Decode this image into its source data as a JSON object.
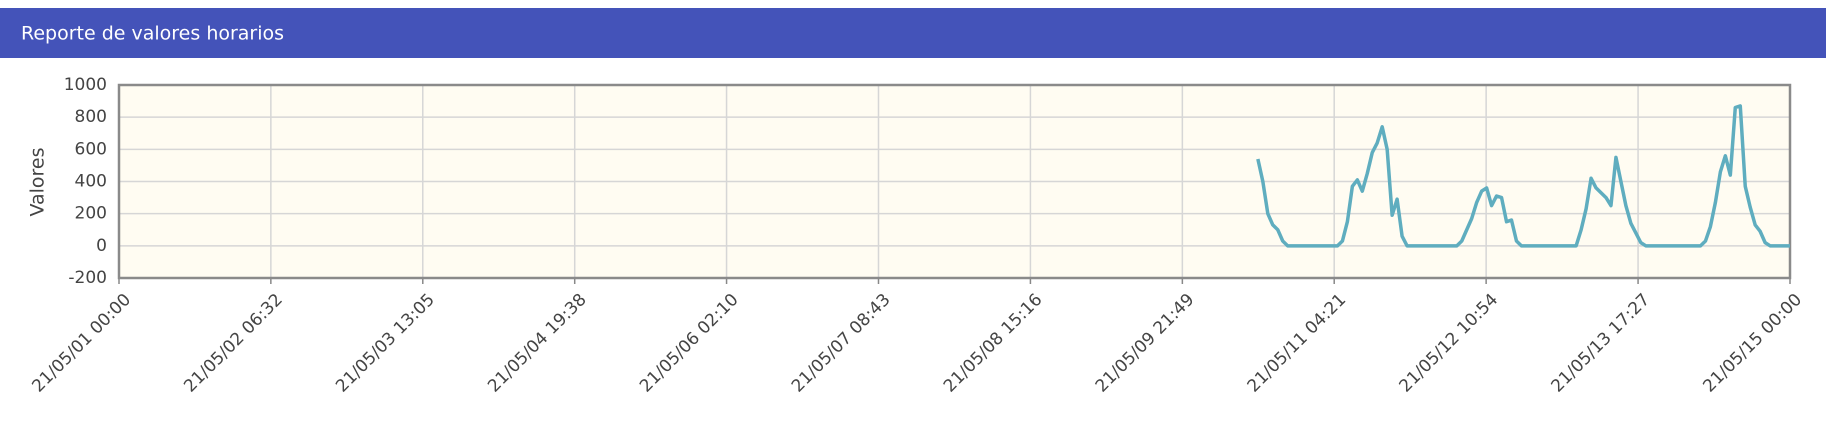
{
  "chart_data": {
    "type": "line",
    "title": "Reporte de valores horarios",
    "ylabel": "Valores",
    "xlim": [
      "21/05/01 00:00",
      "21/05/15 00:00"
    ],
    "xticks": [
      "21/05/01 00:00",
      "21/05/02 06:32",
      "21/05/03 13:05",
      "21/05/04 19:38",
      "21/05/06 02:10",
      "21/05/07 08:43",
      "21/05/08 15:16",
      "21/05/09 21:49",
      "21/05/11 04:21",
      "21/05/12 10:54",
      "21/05/13 17:27",
      "21/05/15 00:00"
    ],
    "ylim": [
      -200,
      1000
    ],
    "yticks": [
      -200,
      0,
      200,
      400,
      600,
      800,
      1000
    ],
    "grid": true,
    "x": [
      "21/05/10 13:00",
      "21/05/10 14:00",
      "21/05/10 15:00",
      "21/05/10 16:00",
      "21/05/10 17:00",
      "21/05/10 18:00",
      "21/05/10 19:00",
      "21/05/10 20:00",
      "21/05/10 21:00",
      "21/05/10 22:00",
      "21/05/10 23:00",
      "21/05/11 00:00",
      "21/05/11 01:00",
      "21/05/11 02:00",
      "21/05/11 03:00",
      "21/05/11 04:00",
      "21/05/11 05:00",
      "21/05/11 06:00",
      "21/05/11 07:00",
      "21/05/11 08:00",
      "21/05/11 09:00",
      "21/05/11 10:00",
      "21/05/11 11:00",
      "21/05/11 12:00",
      "21/05/11 13:00",
      "21/05/11 14:00",
      "21/05/11 15:00",
      "21/05/11 16:00",
      "21/05/11 17:00",
      "21/05/11 18:00",
      "21/05/11 19:00",
      "21/05/11 20:00",
      "21/05/11 21:00",
      "21/05/11 22:00",
      "21/05/11 23:00",
      "21/05/12 00:00",
      "21/05/12 01:00",
      "21/05/12 02:00",
      "21/05/12 03:00",
      "21/05/12 04:00",
      "21/05/12 05:00",
      "21/05/12 06:00",
      "21/05/12 07:00",
      "21/05/12 08:00",
      "21/05/12 09:00",
      "21/05/12 10:00",
      "21/05/12 11:00",
      "21/05/12 12:00",
      "21/05/12 13:00",
      "21/05/12 14:00",
      "21/05/12 15:00",
      "21/05/12 16:00",
      "21/05/12 17:00",
      "21/05/12 18:00",
      "21/05/12 19:00",
      "21/05/12 20:00",
      "21/05/12 21:00",
      "21/05/12 22:00",
      "21/05/12 23:00",
      "21/05/13 00:00",
      "21/05/13 01:00",
      "21/05/13 02:00",
      "21/05/13 03:00",
      "21/05/13 04:00",
      "21/05/13 05:00",
      "21/05/13 06:00",
      "21/05/13 07:00",
      "21/05/13 08:00",
      "21/05/13 09:00",
      "21/05/13 10:00",
      "21/05/13 11:00",
      "21/05/13 12:00",
      "21/05/13 13:00",
      "21/05/13 14:00",
      "21/05/13 15:00",
      "21/05/13 16:00",
      "21/05/13 17:00",
      "21/05/13 18:00",
      "21/05/13 19:00",
      "21/05/13 20:00",
      "21/05/13 21:00",
      "21/05/13 22:00",
      "21/05/13 23:00",
      "21/05/14 00:00",
      "21/05/14 01:00",
      "21/05/14 02:00",
      "21/05/14 03:00",
      "21/05/14 04:00",
      "21/05/14 05:00",
      "21/05/14 06:00",
      "21/05/14 07:00",
      "21/05/14 08:00",
      "21/05/14 09:00",
      "21/05/14 10:00",
      "21/05/14 11:00",
      "21/05/14 12:00",
      "21/05/14 13:00",
      "21/05/14 14:00",
      "21/05/14 15:00",
      "21/05/14 16:00",
      "21/05/14 17:00",
      "21/05/14 18:00",
      "21/05/14 19:00",
      "21/05/14 20:00",
      "21/05/14 21:00",
      "21/05/14 22:00",
      "21/05/14 23:00",
      "21/05/15 00:00"
    ],
    "series": [
      {
        "color": "#5fadbf",
        "values": [
          540,
          400,
          200,
          130,
          100,
          30,
          0,
          0,
          0,
          0,
          0,
          0,
          0,
          0,
          0,
          0,
          0,
          30,
          150,
          370,
          410,
          340,
          450,
          580,
          640,
          740,
          600,
          190,
          290,
          60,
          0,
          0,
          0,
          0,
          0,
          0,
          0,
          0,
          0,
          0,
          0,
          30,
          100,
          170,
          270,
          340,
          360,
          250,
          310,
          300,
          150,
          160,
          30,
          0,
          0,
          0,
          0,
          0,
          0,
          0,
          0,
          0,
          0,
          0,
          0,
          100,
          230,
          420,
          360,
          330,
          300,
          250,
          550,
          400,
          250,
          140,
          80,
          20,
          0,
          0,
          0,
          0,
          0,
          0,
          0,
          0,
          0,
          0,
          0,
          0,
          30,
          120,
          270,
          460,
          560,
          440,
          860,
          870,
          370,
          240,
          130,
          90,
          20,
          0,
          0,
          0,
          0,
          0
        ]
      }
    ]
  }
}
